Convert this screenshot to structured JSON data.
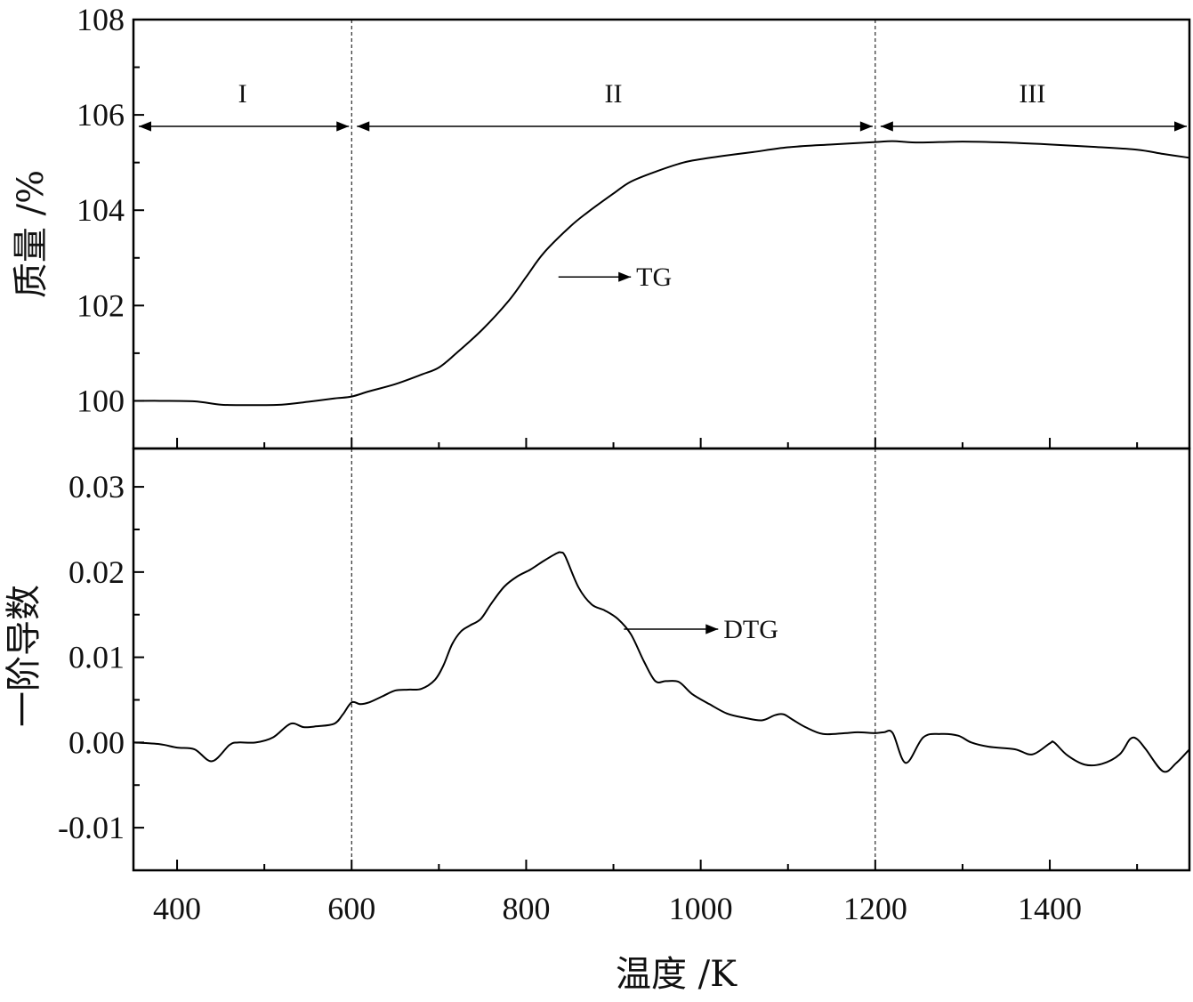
{
  "chart_data": {
    "type": "line",
    "xlabel": "温度 /K",
    "xlim": [
      350,
      1560
    ],
    "xticks": [
      400,
      600,
      800,
      1000,
      1200,
      1400
    ],
    "x_minor_step": 100,
    "stage_boundaries": [
      600,
      1200
    ],
    "stages": [
      {
        "label": "I",
        "from": 350,
        "to": 600
      },
      {
        "label": "II",
        "from": 600,
        "to": 1200
      },
      {
        "label": "III",
        "from": 1200,
        "to": 1560
      }
    ],
    "panels": [
      {
        "id": "tg",
        "ylabel": "质量 /%",
        "ylim": [
          99,
          108
        ],
        "yticks": [
          100,
          102,
          104,
          106,
          108
        ],
        "ytick_labels": [
          "100",
          "102",
          "104",
          "106",
          "108"
        ],
        "y_minor_step": 1,
        "series": [
          {
            "name": "TG",
            "x": [
              350,
              380,
              420,
              450,
              480,
              520,
              550,
              580,
              600,
              620,
              650,
              680,
              700,
              720,
              750,
              780,
              800,
              820,
              850,
              870,
              900,
              920,
              950,
              980,
              1000,
              1030,
              1060,
              1100,
              1150,
              1200,
              1220,
              1250,
              1300,
              1350,
              1400,
              1450,
              1500,
              1530,
              1560
            ],
            "y": [
              100.0,
              100.0,
              99.99,
              99.92,
              99.91,
              99.92,
              99.98,
              100.05,
              100.09,
              100.2,
              100.35,
              100.55,
              100.7,
              101.0,
              101.5,
              102.1,
              102.6,
              103.1,
              103.65,
              103.95,
              104.35,
              104.6,
              104.82,
              105.0,
              105.07,
              105.15,
              105.22,
              105.32,
              105.38,
              105.43,
              105.45,
              105.42,
              105.44,
              105.42,
              105.38,
              105.33,
              105.27,
              105.18,
              105.1
            ]
          }
        ],
        "annotations": [
          {
            "text": "TG",
            "x": 837,
            "y": 102.6,
            "arrow_to_x": 920
          }
        ]
      },
      {
        "id": "dtg",
        "ylabel": "一阶导数",
        "ylim": [
          -0.015,
          0.0345
        ],
        "yticks": [
          -0.01,
          0.0,
          0.01,
          0.02,
          0.03
        ],
        "ytick_labels": [
          "-0.01",
          "0.00",
          "0.01",
          "0.02",
          "0.03"
        ],
        "y_minor_step": 0.005,
        "series": [
          {
            "name": "DTG",
            "x": [
              350,
              380,
              400,
              420,
              440,
              460,
              470,
              490,
              510,
              530,
              545,
              560,
              580,
              590,
              600,
              610,
              620,
              635,
              650,
              665,
              680,
              695,
              705,
              715,
              725,
              735,
              748,
              760,
              775,
              790,
              805,
              820,
              835,
              840,
              845,
              860,
              875,
              890,
              905,
              920,
              935,
              948,
              960,
              975,
              990,
              1010,
              1030,
              1050,
              1070,
              1085,
              1095,
              1105,
              1120,
              1140,
              1165,
              1180,
              1200,
              1210,
              1220,
              1235,
              1255,
              1275,
              1295,
              1310,
              1330,
              1360,
              1380,
              1400,
              1405,
              1420,
              1440,
              1460,
              1480,
              1492,
              1500,
              1510,
              1530,
              1545,
              1560
            ],
            "y": [
              0.0,
              -0.0002,
              -0.0006,
              -0.0008,
              -0.0022,
              -0.0003,
              0.0,
              0.0,
              0.0006,
              0.0022,
              0.0018,
              0.0019,
              0.0022,
              0.0033,
              0.0047,
              0.0045,
              0.0047,
              0.0054,
              0.0061,
              0.0062,
              0.0063,
              0.0073,
              0.009,
              0.0115,
              0.013,
              0.0137,
              0.0145,
              0.0163,
              0.0183,
              0.0195,
              0.0203,
              0.0213,
              0.0222,
              0.0223,
              0.0218,
              0.0182,
              0.0162,
              0.0155,
              0.0145,
              0.0127,
              0.0095,
              0.0072,
              0.0072,
              0.0071,
              0.0057,
              0.0045,
              0.0034,
              0.0029,
              0.0026,
              0.0032,
              0.0033,
              0.0027,
              0.0018,
              0.001,
              0.0011,
              0.0012,
              0.0011,
              0.0012,
              0.0011,
              -0.0024,
              0.0006,
              0.001,
              0.0008,
              0.0,
              -0.0005,
              -0.0008,
              -0.0014,
              -0.0001,
              0.0,
              -0.0015,
              -0.0026,
              -0.0025,
              -0.0014,
              0.0004,
              0.0004,
              -0.0008,
              -0.0034,
              -0.0024,
              -0.0008
            ]
          }
        ],
        "annotations": [
          {
            "text": "DTG",
            "x": 912,
            "y": 0.0133,
            "arrow_to_x": 1020
          }
        ]
      }
    ]
  }
}
